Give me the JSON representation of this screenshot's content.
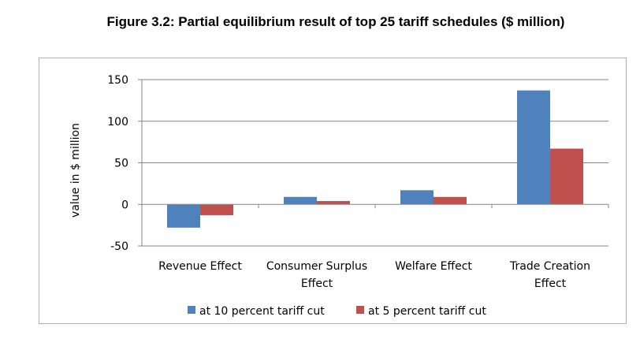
{
  "chart_data": {
    "type": "bar",
    "title": "Figure 3.2: Partial equilibrium result of top 25 tariff schedules ($ million)",
    "xlabel": "",
    "ylabel": "value in $ million",
    "ylim": [
      -50,
      150
    ],
    "yticks": [
      -50,
      0,
      50,
      100,
      150
    ],
    "grid": true,
    "legend_position": "bottom",
    "categories": [
      [
        "Revenue Effect"
      ],
      [
        "Consumer Surplus",
        "Effect"
      ],
      [
        "Welfare Effect"
      ],
      [
        "Trade Creation",
        "Effect"
      ]
    ],
    "series": [
      {
        "name": "at 10 percent tariff cut",
        "color": "#4f81bd",
        "values": [
          -28,
          9,
          17,
          137
        ]
      },
      {
        "name": "at 5 percent tariff cut",
        "color": "#c0504d",
        "values": [
          -13,
          4,
          9,
          67
        ]
      }
    ]
  }
}
